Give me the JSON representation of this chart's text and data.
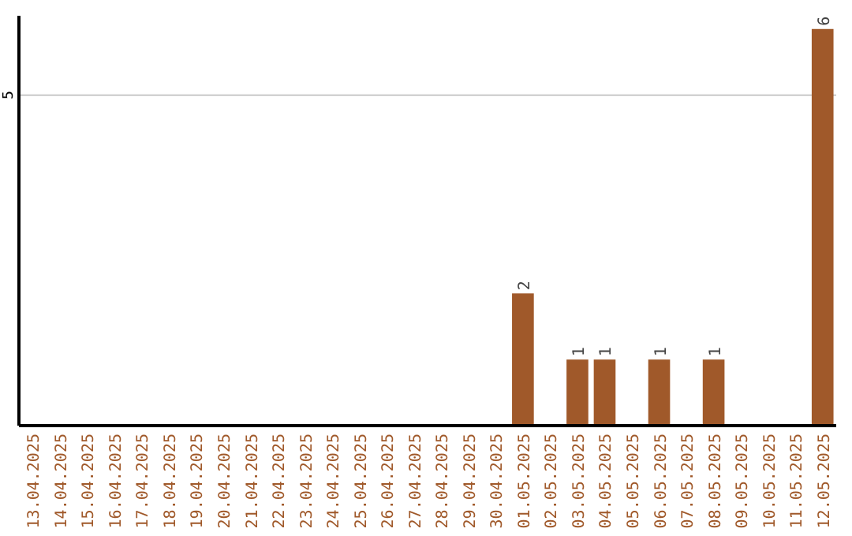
{
  "chart_data": {
    "type": "bar",
    "categories": [
      "13.04.2025",
      "14.04.2025",
      "15.04.2025",
      "16.04.2025",
      "17.04.2025",
      "18.04.2025",
      "19.04.2025",
      "20.04.2025",
      "21.04.2025",
      "22.04.2025",
      "23.04.2025",
      "24.04.2025",
      "25.04.2025",
      "26.04.2025",
      "27.04.2025",
      "28.04.2025",
      "29.04.2025",
      "30.04.2025",
      "01.05.2025",
      "02.05.2025",
      "03.05.2025",
      "04.05.2025",
      "05.05.2025",
      "06.05.2025",
      "07.05.2025",
      "08.05.2025",
      "09.05.2025",
      "10.05.2025",
      "11.05.2025",
      "12.05.2025"
    ],
    "values": [
      null,
      null,
      null,
      null,
      null,
      null,
      null,
      null,
      null,
      null,
      null,
      null,
      null,
      null,
      null,
      null,
      null,
      null,
      2,
      null,
      1,
      1,
      null,
      1,
      null,
      1,
      null,
      null,
      null,
      6
    ],
    "value_labels": [
      null,
      null,
      null,
      null,
      null,
      null,
      null,
      null,
      null,
      null,
      null,
      null,
      null,
      null,
      null,
      null,
      null,
      null,
      "2",
      null,
      "1",
      "1",
      null,
      "1",
      null,
      "1",
      null,
      null,
      null,
      "6"
    ],
    "ylim": [
      0,
      6.2
    ],
    "color": "#a0592a",
    "ref_lines": [
      {
        "axis": "y",
        "value": 5,
        "label": "5",
        "color": "#c8c8c8"
      }
    ]
  }
}
